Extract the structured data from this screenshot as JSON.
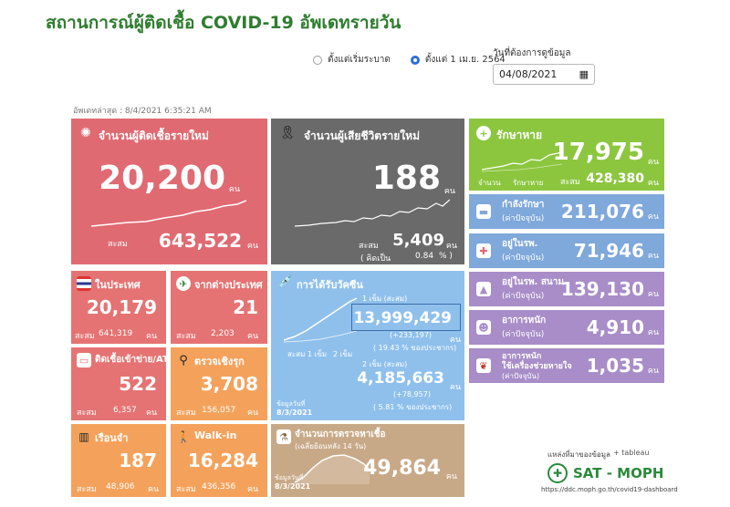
{
  "header": {
    "title": "สถานการณ์ผู้ติดเชื้อ COVID-19 อัพเดทรายวัน",
    "radio_since_start": "ตั้งแต่เริ่มระบาด",
    "radio_since_april": "ตั้งแต่ 1 เม.ย. 2564",
    "date_label": "วันที่ต้องการดูข้อมูล",
    "date_value": "04/08/2021",
    "updated": "อัพเดทล่าสุด : 8/4/2021 6:35:21 AM"
  },
  "new_cases": {
    "label": "จำนวนผู้ติดเชื้อรายใหม่",
    "value": "20,200",
    "unit": "คน",
    "total_label": "สะสม",
    "total": "643,522"
  },
  "deaths": {
    "label": "จำนวนผู้เสียชีวิตรายใหม่",
    "value": "188",
    "unit": "คน",
    "total_label": "สะสม",
    "total": "5,409",
    "pct_label": "( คิดเป็น",
    "pct": "0.84",
    "pct_unit": "% )"
  },
  "recovered": {
    "label": "รักษาหาย",
    "value": "17,975",
    "unit": "คน",
    "total_label": "สะสม",
    "total": "428,380",
    "legend_a": "จำนวน",
    "legend_b": "รักษาหาย"
  },
  "treating": {
    "label": "กำลังรักษา",
    "sub": "(ค่าปัจจุบัน)",
    "value": "211,076",
    "unit": "คน"
  },
  "hospital": {
    "label": "อยู่ในรพ.",
    "sub": "(ค่าปัจจุบัน)",
    "value": "71,946",
    "unit": "คน"
  },
  "field_hospital": {
    "label": "อยู่ในรพ. สนาม",
    "sub": "(ค่าปัจจุบัน)",
    "value": "139,130",
    "unit": "คน"
  },
  "severe": {
    "label": "อาการหนัก",
    "sub": "(ค่าปัจจุบัน)",
    "value": "4,910",
    "unit": "คน"
  },
  "ventilator": {
    "label": "อาการหนัก",
    "label2": "ใช้เครื่องช่วยหายใจ",
    "sub": "(ค่าปัจจุบัน)",
    "value": "1,035",
    "unit": "คน"
  },
  "domestic": {
    "label": "ในประเทศ",
    "value": "20,179",
    "total_label": "สะสม",
    "total": "641,319",
    "unit": "คน"
  },
  "imported": {
    "label": "จากต่างประเทศ",
    "value": "21",
    "total_label": "สะสม",
    "total": "2,203",
    "unit": "คน"
  },
  "atk": {
    "label": "ติดเชื้อเข้าข่าย/ATK",
    "value": "522",
    "total_label": "สะสม",
    "total": "6,357",
    "unit": "คน"
  },
  "proactive": {
    "label": "ตรวจเชิงรุก",
    "value": "3,708",
    "total_label": "สะสม",
    "total": "156,057",
    "unit": "คน"
  },
  "prison": {
    "label": "เรือนจำ",
    "value": "187",
    "total_label": "สะสม",
    "total": "48,906",
    "unit": "คน"
  },
  "walkin": {
    "label": "Walk-in",
    "value": "16,284",
    "total_label": "สะสม",
    "total": "436,356",
    "unit": "คน"
  },
  "vaccine": {
    "label": "การได้รับวัคซีน",
    "dose1_label": "1 เข็ม (สะสม)",
    "dose1": "13,999,429",
    "dose1_unit": "คน",
    "dose1_delta": "(+233,197)",
    "dose1_pct": "( 19.43 % ของประชากร)",
    "dose2_label": "2 เข็ม (สะสม)",
    "dose2": "4,185,663",
    "dose2_unit": "คน",
    "dose2_delta": "(+78,957)",
    "dose2_pct": "( 5.81 % ของประชากร)",
    "legend": "สะสม",
    "legend_a": "1 เข็ม",
    "legend_b": "2 เข็ม",
    "data_date_label": "ข้อมูลวันที่",
    "data_date": "8/3/2021"
  },
  "tests": {
    "label": "จำนวนการตรวจหาเชื้อ",
    "sub": "(เฉลี่ยย้อนหลัง 14 วัน)",
    "value": "49,864",
    "unit": "คน",
    "data_date_label": "ข้อมูลวันที่",
    "data_date": "8/3/2021"
  },
  "footer": {
    "source": "แหล่งที่มาของข้อมูล",
    "tableau": "+ tableau",
    "brand": "SAT - MOPH",
    "url": "https://ddc.moph.go.th/covid19-dashboard"
  },
  "colors": {
    "red": "#e06a72",
    "gray": "#6a6a6a",
    "green": "#8cc63f",
    "blue": "#7fa8db",
    "purple": "#a88dc8",
    "pink": "#e57373",
    "orange": "#f4a25b",
    "vaccine": "#8fc0ec",
    "tan": "#c8a987"
  }
}
